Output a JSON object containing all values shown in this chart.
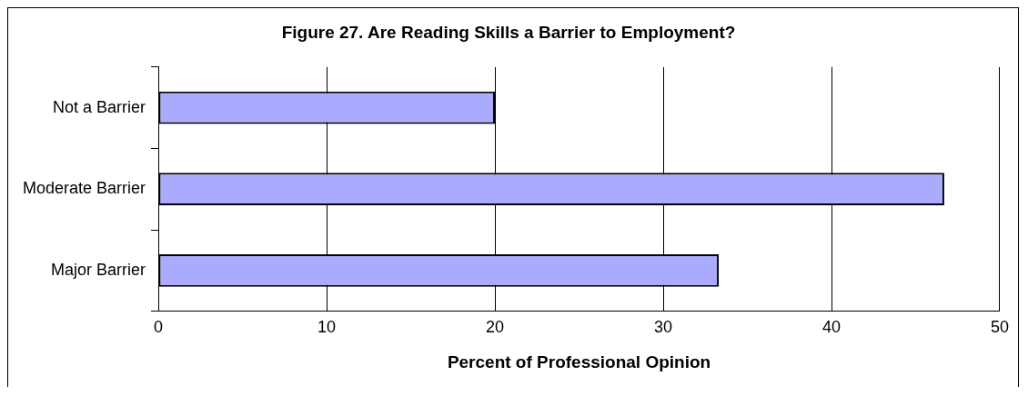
{
  "chart_data": {
    "type": "bar",
    "orientation": "horizontal",
    "title": "Figure 27. Are Reading Skills a Barrier to Employment?",
    "xlabel": "Percent of Professional Opinion",
    "categories": [
      "Not a Barrier",
      "Moderate Barrier",
      "Major Barrier"
    ],
    "values": [
      20,
      46.7,
      33.3
    ],
    "color": "#aaaaff",
    "xlim": [
      0,
      50
    ],
    "xticks": [
      0,
      10,
      20,
      30,
      40,
      50
    ],
    "grid": "x",
    "legend": false
  }
}
